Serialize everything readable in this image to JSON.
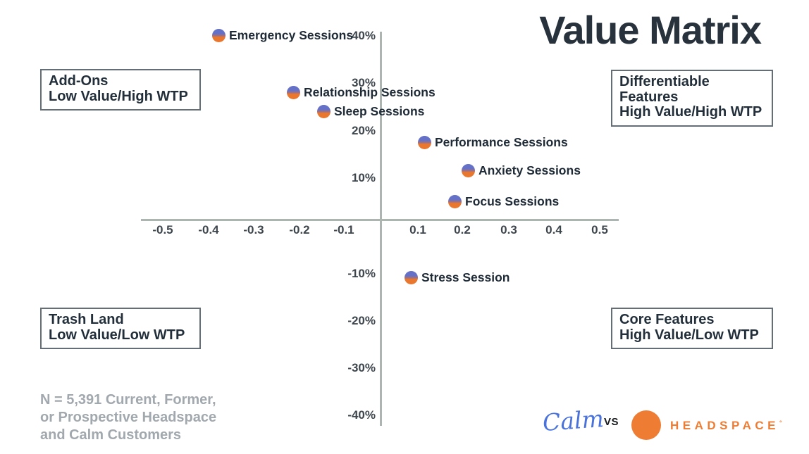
{
  "title": "Value Matrix",
  "quadrants": {
    "top_left": {
      "lines": [
        "Add-Ons",
        "Low Value/High WTP"
      ]
    },
    "top_right": {
      "lines": [
        "Differentiable",
        "Features",
        "High Value/High WTP"
      ]
    },
    "bottom_left": {
      "lines": [
        "Trash Land",
        "Low Value/Low WTP"
      ]
    },
    "bottom_right": {
      "lines": [
        "Core Features",
        "High Value/Low WTP"
      ]
    }
  },
  "chart_data": {
    "type": "scatter",
    "title": "Value Matrix",
    "xlabel": "",
    "ylabel": "",
    "xlim": [
      -0.5,
      0.5
    ],
    "ylim": [
      -40,
      40
    ],
    "grid": false,
    "legend": "none",
    "x_ticks": [
      "-0.5",
      "-0.4",
      "-0.3",
      "-0.2",
      "-0.1",
      "0.1",
      "0.2",
      "0.3",
      "0.4",
      "0.5"
    ],
    "y_ticks": [
      "40%",
      "30%",
      "20%",
      "10%",
      "-10%",
      "-20%",
      "-30%",
      "-40%"
    ],
    "points": [
      {
        "name": "Emergency Sessions",
        "x": -0.37,
        "y": 40
      },
      {
        "name": "Relationship Sessions",
        "x": -0.2,
        "y": 28
      },
      {
        "name": "Sleep Sessions",
        "x": -0.13,
        "y": 24
      },
      {
        "name": "Performance Sessions",
        "x": 0.1,
        "y": 17.5
      },
      {
        "name": "Anxiety Sessions",
        "x": 0.2,
        "y": 11.5
      },
      {
        "name": "Focus Sessions",
        "x": 0.17,
        "y": 5
      },
      {
        "name": "Stress Session",
        "x": 0.07,
        "y": -11
      }
    ],
    "marker": {
      "top_color": "#6471c6",
      "bottom_color": "#e9772e"
    }
  },
  "footnote": {
    "lines": [
      "N = 5,391 Current, Former,",
      "or Prospective Headspace",
      "and Calm Customers"
    ]
  },
  "brands": {
    "calm_label": "Calm",
    "vs_label": "VS",
    "headspace_label": "HEADSPACE",
    "headspace_mark": "°",
    "calm_color": "#4a72db",
    "headspace_color": "#ee7c33"
  },
  "colors": {
    "title_text": "#27323d",
    "quadrant_text": "#222f3a",
    "quadrant_border": "#646e77",
    "axis_line": "#adb5b1",
    "tick_text": "#3e464d",
    "point_label_text": "#1e2a36",
    "footnote_text": "#a1a8ae"
  }
}
